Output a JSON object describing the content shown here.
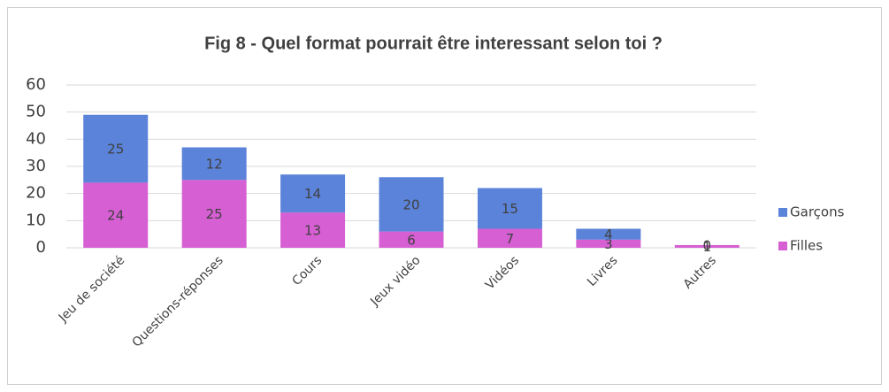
{
  "chart_data": {
    "type": "stacked_bar",
    "title": "Fig 8 - Quel format pourrait être interessant selon toi ?",
    "categories": [
      "Jeu de société",
      "Questions-réponses",
      "Cours",
      "Jeux vidéo",
      "Vidéos",
      "Livres",
      "Autres"
    ],
    "series": [
      {
        "name": "Filles",
        "color": "#d65fd3",
        "values": [
          24,
          25,
          13,
          6,
          7,
          3,
          1
        ]
      },
      {
        "name": "Garçons",
        "color": "#5b83d9",
        "values": [
          25,
          12,
          14,
          20,
          15,
          4,
          0
        ]
      }
    ],
    "ylim": [
      0,
      60
    ],
    "yticks": [
      0,
      10,
      20,
      30,
      40,
      50,
      60
    ],
    "grid": true,
    "legend": "right"
  }
}
